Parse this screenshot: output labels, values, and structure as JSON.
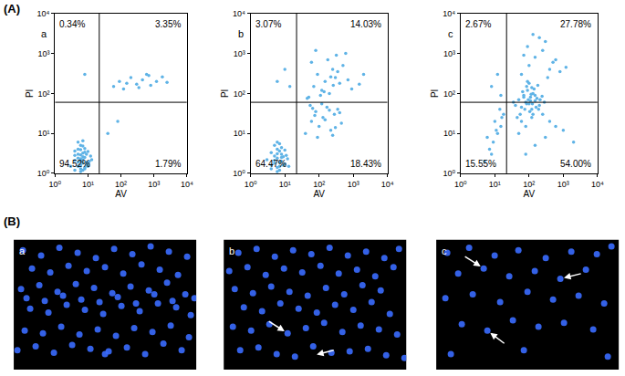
{
  "section_labels": [
    "(A)",
    "(B)"
  ],
  "chart_data": [
    {
      "type": "scatter",
      "title": "a",
      "x_label": "AV",
      "y_label": "PI",
      "log": true,
      "grid": false,
      "xlim": [
        1,
        10000
      ],
      "ylim": [
        1,
        10000
      ],
      "xticks": [
        {
          "value": 1,
          "label": "10⁰"
        },
        {
          "value": 10,
          "label": "10¹"
        },
        {
          "value": 100,
          "label": "10²"
        },
        {
          "value": 1000,
          "label": "10³"
        },
        {
          "value": 10000,
          "label": "10⁴"
        }
      ],
      "yticks": [
        {
          "value": 1,
          "label": "10⁰"
        },
        {
          "value": 10,
          "label": "10¹"
        },
        {
          "value": 100,
          "label": "10²"
        },
        {
          "value": 1000,
          "label": "10³"
        },
        {
          "value": 10000,
          "label": "10⁴"
        }
      ],
      "gates": {
        "x": 22,
        "y": 60
      },
      "quadrant_labels": {
        "upper_left": "0.34%",
        "upper_right": "3.35%",
        "lower_left": "94.52%",
        "lower_right": "1.79%"
      },
      "series": [
        {
          "color": "#5fb3e6",
          "marker": "circle",
          "x": [
            4,
            5,
            6,
            7,
            8,
            5,
            6,
            7,
            9,
            10,
            4,
            5,
            6,
            8,
            11,
            6,
            7,
            5,
            9,
            12,
            3,
            4,
            6,
            7,
            8,
            10,
            5,
            6,
            7,
            8,
            9,
            6,
            5,
            7,
            13,
            4,
            8,
            6,
            10,
            7,
            60,
            90,
            150,
            200,
            300,
            450,
            600,
            800,
            1200,
            1800,
            2500,
            350,
            120,
            700,
            40,
            80,
            8
          ],
          "y": [
            1.2,
            1.5,
            2,
            1.8,
            2.5,
            3,
            1.3,
            2.2,
            1.6,
            3.5,
            2.8,
            4,
            1.1,
            1.4,
            2,
            5,
            3.2,
            2.4,
            1.9,
            2.7,
            1.5,
            3.6,
            2.9,
            1.2,
            4.2,
            1.7,
            1.9,
            3.9,
            2.6,
            1.3,
            3,
            1.6,
            6,
            4.8,
            2.2,
            2.1,
            3.4,
            2.3,
            1.5,
            6.5,
            150,
            200,
            180,
            250,
            170,
            220,
            300,
            160,
            200,
            260,
            190,
            140,
            130,
            280,
            10,
            20,
            300
          ]
        }
      ]
    },
    {
      "type": "scatter",
      "title": "b",
      "x_label": "AV",
      "y_label": "PI",
      "log": true,
      "grid": false,
      "xlim": [
        1,
        10000
      ],
      "ylim": [
        1,
        10000
      ],
      "xticks": [
        {
          "value": 1,
          "label": "10⁰"
        },
        {
          "value": 10,
          "label": "10¹"
        },
        {
          "value": 100,
          "label": "10²"
        },
        {
          "value": 1000,
          "label": "10³"
        },
        {
          "value": 10000,
          "label": "10⁴"
        }
      ],
      "yticks": [
        {
          "value": 1,
          "label": "10⁰"
        },
        {
          "value": 10,
          "label": "10¹"
        },
        {
          "value": 100,
          "label": "10²"
        },
        {
          "value": 1000,
          "label": "10³"
        },
        {
          "value": 10000,
          "label": "10⁴"
        }
      ],
      "gates": {
        "x": 22,
        "y": 60
      },
      "quadrant_labels": {
        "upper_left": "3.07%",
        "upper_right": "14.03%",
        "lower_left": "64.47%",
        "lower_right": "18.43%"
      },
      "series": [
        {
          "color": "#5fb3e6",
          "marker": "circle",
          "x": [
            4,
            5,
            6,
            7,
            8,
            5,
            6,
            7,
            9,
            10,
            4,
            6,
            8,
            11,
            5,
            7,
            9,
            12,
            3,
            6,
            7,
            8,
            5,
            6,
            10,
            13,
            4,
            8,
            7,
            6,
            50,
            70,
            90,
            120,
            150,
            200,
            250,
            300,
            400,
            500,
            700,
            900,
            60,
            110,
            180,
            260,
            350,
            80,
            140,
            220,
            600,
            1500,
            2000,
            45,
            320,
            40,
            60,
            80,
            100,
            130,
            170,
            220,
            280,
            350,
            450,
            55,
            90,
            150,
            200,
            300,
            120,
            75,
            250,
            400,
            65,
            6,
            10,
            14
          ],
          "y": [
            1.3,
            1.8,
            2.4,
            1.5,
            3,
            2.1,
            4,
            1.2,
            2.6,
            1.7,
            3.3,
            1.4,
            2,
            2.8,
            5,
            3.6,
            1.6,
            2.3,
            2.2,
            6,
            1.9,
            4.4,
            2.7,
            1.1,
            3.8,
            1.5,
            1.6,
            2.5,
            5.5,
            3.1,
            80,
            150,
            300,
            120,
            200,
            100,
            400,
            250,
            180,
            500,
            220,
            130,
            600,
            90,
            700,
            160,
            350,
            1200,
            110,
            260,
            1000,
            170,
            300,
            75,
            900,
            10,
            20,
            35,
            15,
            25,
            45,
            12,
            30,
            40,
            18,
            50,
            8,
            22,
            38,
            14,
            55,
            28,
            9,
            33,
            42,
            200,
            400,
            150
          ]
        }
      ]
    },
    {
      "type": "scatter",
      "title": "c",
      "x_label": "AV",
      "y_label": "PI",
      "log": true,
      "grid": false,
      "xlim": [
        1,
        10000
      ],
      "ylim": [
        1,
        10000
      ],
      "xticks": [
        {
          "value": 1,
          "label": "10⁰"
        },
        {
          "value": 10,
          "label": "10¹"
        },
        {
          "value": 100,
          "label": "10²"
        },
        {
          "value": 1000,
          "label": "10³"
        },
        {
          "value": 10000,
          "label": "10⁴"
        }
      ],
      "yticks": [
        {
          "value": 1,
          "label": "10⁰"
        },
        {
          "value": 10,
          "label": "10¹"
        },
        {
          "value": 100,
          "label": "10²"
        },
        {
          "value": 1000,
          "label": "10³"
        },
        {
          "value": 10000,
          "label": "10⁴"
        }
      ],
      "gates": {
        "x": 22,
        "y": 60
      },
      "quadrant_labels": {
        "upper_left": "2.67%",
        "upper_right": "27.78%",
        "lower_left": "15.55%",
        "lower_right": "54.00%"
      },
      "series": [
        {
          "color": "#5fb3e6",
          "marker": "circle",
          "x": [
            5,
            7,
            9,
            12,
            15,
            18,
            6,
            10,
            14,
            8,
            11,
            16,
            40,
            50,
            60,
            70,
            80,
            90,
            100,
            110,
            120,
            130,
            150,
            170,
            200,
            240,
            280,
            55,
            65,
            75,
            85,
            95,
            105,
            115,
            125,
            140,
            160,
            180,
            210,
            45,
            35,
            60,
            90,
            130,
            70,
            100,
            150,
            80,
            120,
            190,
            110,
            85,
            60,
            100,
            150,
            250,
            400,
            600,
            90,
            200,
            350,
            800,
            130,
            70,
            500,
            300,
            1200,
            50,
            150,
            300,
            600,
            1000,
            2000,
            80,
            400,
            250,
            120,
            8,
            12,
            15
          ],
          "y": [
            2,
            4,
            6,
            10,
            15,
            30,
            8,
            20,
            40,
            3,
            12,
            25,
            50,
            70,
            45,
            90,
            60,
            120,
            55,
            80,
            40,
            100,
            65,
            75,
            50,
            85,
            60,
            30,
            110,
            40,
            150,
            70,
            35,
            95,
            55,
            130,
            45,
            160,
            70,
            25,
            60,
            20,
            200,
            30,
            80,
            180,
            90,
            15,
            140,
            40,
            65,
            55,
            300,
            500,
            800,
            1200,
            400,
            700,
            1500,
            2500,
            250,
            350,
            3000,
            900,
            600,
            2000,
            450,
            10,
            5,
            8,
            15,
            12,
            6,
            3,
            20,
            30,
            25,
            150,
            300,
            90
          ]
        }
      ]
    },
    {
      "type": "image",
      "title": "a",
      "tick_labels": false,
      "xlim": [
        0,
        100
      ],
      "ylim": [
        0,
        100
      ],
      "series": [
        {
          "color": "#3a6bff",
          "marker": "circle",
          "x": [
            5,
            15,
            25,
            35,
            45,
            55,
            65,
            75,
            85,
            95,
            10,
            20,
            30,
            40,
            50,
            60,
            70,
            80,
            90,
            4,
            14,
            24,
            34,
            44,
            54,
            64,
            74,
            84,
            94,
            9,
            19,
            29,
            39,
            49,
            59,
            69,
            79,
            89,
            97,
            6,
            16,
            26,
            36,
            46,
            56,
            66,
            76,
            86,
            96,
            50,
            2,
            12,
            22,
            32,
            42,
            52,
            62,
            72,
            82,
            92,
            7,
            17,
            27,
            37,
            47,
            57,
            67,
            77,
            87,
            99
          ],
          "y": [
            92,
            88,
            94,
            90,
            86,
            93,
            89,
            95,
            91,
            87,
            78,
            75,
            80,
            76,
            79,
            74,
            81,
            77,
            73,
            62,
            65,
            60,
            66,
            63,
            59,
            64,
            61,
            67,
            58,
            47,
            44,
            50,
            46,
            43,
            49,
            45,
            51,
            48,
            42,
            30,
            28,
            33,
            27,
            31,
            26,
            32,
            29,
            34,
            25,
            12,
            15,
            18,
            13,
            19,
            16,
            14,
            17,
            12,
            20,
            15,
            55,
            53,
            57,
            54,
            52,
            56,
            51,
            58,
            53,
            55
          ]
        }
      ],
      "arrows": {
        "x": [],
        "y": []
      }
    },
    {
      "type": "image",
      "title": "b",
      "tick_labels": false,
      "xlim": [
        0,
        100
      ],
      "ylim": [
        0,
        100
      ],
      "series": [
        {
          "color": "#3a6bff",
          "marker": "circle",
          "x": [
            8,
            18,
            28,
            38,
            48,
            58,
            68,
            78,
            88,
            96,
            3,
            13,
            23,
            33,
            43,
            53,
            63,
            73,
            83,
            93,
            6,
            16,
            26,
            36,
            46,
            56,
            66,
            76,
            86,
            11,
            21,
            31,
            41,
            51,
            61,
            71,
            81,
            91,
            5,
            15,
            25,
            35,
            45,
            55,
            65,
            75,
            85,
            95,
            9,
            29,
            49,
            69,
            89,
            19,
            39,
            59,
            79,
            99
          ],
          "y": [
            90,
            93,
            87,
            92,
            89,
            94,
            88,
            91,
            86,
            93,
            76,
            79,
            73,
            78,
            75,
            80,
            74,
            77,
            72,
            79,
            62,
            59,
            64,
            60,
            57,
            63,
            58,
            65,
            61,
            48,
            45,
            51,
            47,
            44,
            50,
            46,
            52,
            43,
            33,
            30,
            35,
            28,
            32,
            36,
            29,
            34,
            31,
            27,
            15,
            12,
            18,
            14,
            11,
            17,
            10,
            13,
            16,
            9
          ]
        }
      ],
      "arrows": {
        "x": [
          35,
          49
        ],
        "y": [
          28,
          11
        ]
      }
    },
    {
      "type": "image",
      "title": "c",
      "tick_labels": false,
      "xlim": [
        0,
        100
      ],
      "ylim": [
        0,
        100
      ],
      "series": [
        {
          "color": "#3a6bff",
          "marker": "circle",
          "x": [
            6,
            18,
            32,
            45,
            60,
            74,
            88,
            96,
            12,
            26,
            40,
            54,
            68,
            82,
            5,
            20,
            35,
            50,
            64,
            78,
            92,
            14,
            28,
            42,
            56,
            70,
            86,
            8,
            48,
            94
          ],
          "y": [
            90,
            94,
            88,
            92,
            86,
            91,
            89,
            95,
            74,
            78,
            72,
            76,
            70,
            77,
            55,
            58,
            52,
            60,
            54,
            57,
            51,
            35,
            30,
            38,
            33,
            36,
            31,
            12,
            15,
            10
          ]
        }
      ],
      "arrows": {
        "x": [
          26,
          68,
          28
        ],
        "y": [
          78,
          70,
          30
        ]
      }
    }
  ]
}
